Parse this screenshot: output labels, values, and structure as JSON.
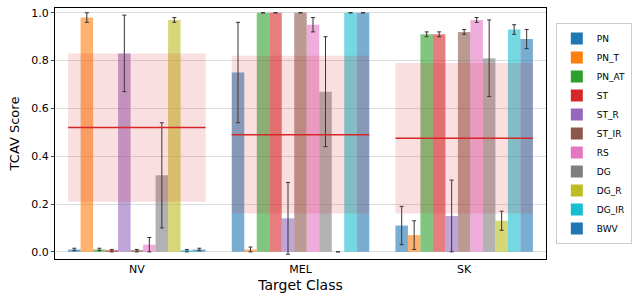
{
  "chart_data": {
    "type": "bar",
    "x_label": "Target Class",
    "y_label": "TCAV Score",
    "categories": [
      "NV",
      "MEL",
      "SK"
    ],
    "series": [
      {
        "name": "PN",
        "color": "#1f77b4",
        "values": [
          0.01,
          0.75,
          0.11
        ],
        "error": [
          0.005,
          0.21,
          0.08
        ]
      },
      {
        "name": "PN_T",
        "color": "#ff7f0e",
        "values": [
          0.98,
          0.01,
          0.07
        ],
        "error": [
          0.02,
          0.01,
          0.06
        ]
      },
      {
        "name": "PN_AT",
        "color": "#2ca02c",
        "values": [
          0.01,
          1.0,
          0.91
        ],
        "error": [
          0.005,
          0.0,
          0.01
        ]
      },
      {
        "name": "ST",
        "color": "#d62728",
        "values": [
          0.005,
          1.0,
          0.91
        ],
        "error": [
          0.005,
          0.0,
          0.01
        ]
      },
      {
        "name": "ST_R",
        "color": "#9467bd",
        "values": [
          0.83,
          0.14,
          0.15
        ],
        "error": [
          0.16,
          0.15,
          0.15
        ]
      },
      {
        "name": "ST_IR",
        "color": "#8c564b",
        "values": [
          0.005,
          1.0,
          0.92
        ],
        "error": [
          0.005,
          0.0,
          0.01
        ]
      },
      {
        "name": "RS",
        "color": "#e377c2",
        "values": [
          0.03,
          0.95,
          0.97
        ],
        "error": [
          0.03,
          0.03,
          0.01
        ]
      },
      {
        "name": "DG",
        "color": "#7f7f7f",
        "values": [
          0.32,
          0.67,
          0.81
        ],
        "error": [
          0.22,
          0.23,
          0.16
        ]
      },
      {
        "name": "DG_R",
        "color": "#bcbd22",
        "values": [
          0.97,
          0.0,
          0.13
        ],
        "error": [
          0.01,
          0.0,
          0.04
        ]
      },
      {
        "name": "DG_IR",
        "color": "#17becf",
        "values": [
          0.005,
          1.0,
          0.93
        ],
        "error": [
          0.005,
          0.0,
          0.02
        ]
      },
      {
        "name": "BWV",
        "color": "#1f77b4",
        "values": [
          0.01,
          1.0,
          0.89
        ],
        "error": [
          0.005,
          0.0,
          0.04
        ]
      }
    ],
    "reference": {
      "color": "#d62728",
      "values": [
        0.52,
        0.49,
        0.475
      ],
      "band_low": [
        0.21,
        0.16,
        0.16
      ],
      "band_high": [
        0.83,
        0.82,
        0.79
      ]
    },
    "ylim": [
      -0.03,
      1.02
    ],
    "yticks": [
      {
        "value": 0,
        "label": "0.0"
      },
      0.2,
      0.4,
      0.6,
      0.8,
      {
        "value": 1,
        "label": "1.0"
      }
    ],
    "grid": true,
    "legend": "right"
  }
}
